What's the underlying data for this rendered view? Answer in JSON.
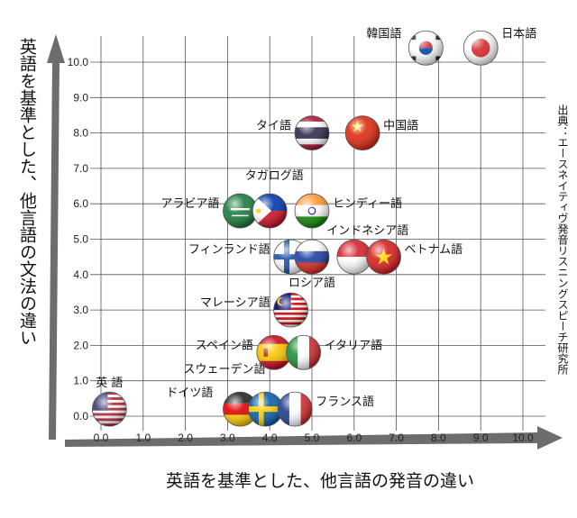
{
  "chart_data": {
    "type": "scatter",
    "xlabel": "英語を基準とした、他言語の発音の違い",
    "ylabel": "英語を基準とした、他言語の文法の違い",
    "source": "出典：エースネイティヴ発音リスニングスピーチ研究所",
    "xlim": [
      0,
      10
    ],
    "ylim": [
      0,
      10
    ],
    "x_ticks": [
      "0.0",
      "1.0",
      "2.0",
      "3.0",
      "4.0",
      "5.0",
      "6.0",
      "7.0",
      "8.0",
      "9.0",
      "10.0"
    ],
    "y_ticks": [
      "0.0",
      "1.0",
      "2.0",
      "3.0",
      "4.0",
      "5.0",
      "6.0",
      "7.0",
      "8.0",
      "9.0",
      "10.0"
    ],
    "grid": true,
    "points": [
      {
        "name": "英 語",
        "x": 0.2,
        "y": 0.2,
        "flag": "us"
      },
      {
        "name": "ドイツ語",
        "x": 3.3,
        "y": 0.2,
        "flag": "de"
      },
      {
        "name": "スウェーデン語",
        "x": 3.9,
        "y": 0.2,
        "flag": "se"
      },
      {
        "name": "フランス語",
        "x": 4.6,
        "y": 0.2,
        "flag": "fr"
      },
      {
        "name": "スペイン語",
        "x": 4.1,
        "y": 1.8,
        "flag": "es"
      },
      {
        "name": "イタリア語",
        "x": 4.8,
        "y": 1.8,
        "flag": "it"
      },
      {
        "name": "マレーシア語",
        "x": 4.5,
        "y": 3.0,
        "flag": "my"
      },
      {
        "name": "フィンランド語",
        "x": 4.5,
        "y": 4.5,
        "flag": "fi"
      },
      {
        "name": "ロシア語",
        "x": 5.0,
        "y": 4.5,
        "flag": "ru"
      },
      {
        "name": "インドネシア語",
        "x": 6.0,
        "y": 4.5,
        "flag": "id"
      },
      {
        "name": "ベトナム語",
        "x": 6.7,
        "y": 4.5,
        "flag": "vn"
      },
      {
        "name": "アラビア語",
        "x": 3.3,
        "y": 5.8,
        "flag": "sa"
      },
      {
        "name": "タガログ語",
        "x": 4.0,
        "y": 5.8,
        "flag": "ph"
      },
      {
        "name": "ヒンディー語",
        "x": 5.0,
        "y": 5.8,
        "flag": "in"
      },
      {
        "name": "タイ語",
        "x": 5.0,
        "y": 8.0,
        "flag": "th"
      },
      {
        "name": "中国語",
        "x": 6.2,
        "y": 8.0,
        "flag": "cn"
      },
      {
        "name": "韓国語",
        "x": 7.7,
        "y": 10.4,
        "flag": "kr"
      },
      {
        "name": "日本語",
        "x": 9.0,
        "y": 10.4,
        "flag": "jp"
      }
    ]
  }
}
